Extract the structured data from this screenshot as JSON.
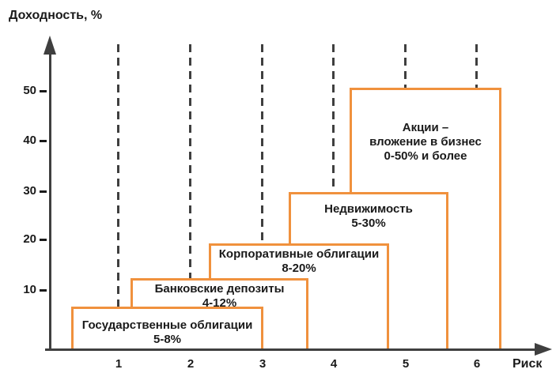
{
  "title": "Доходность, %",
  "axis": {
    "x_label": "Риск",
    "x_ticks": [
      "1",
      "2",
      "3",
      "4",
      "5",
      "6"
    ],
    "y_ticks": [
      "50",
      "40",
      "30",
      "20",
      "10"
    ]
  },
  "boxes": [
    {
      "lines": [
        "Государственные облигации",
        "5-8%"
      ]
    },
    {
      "lines": [
        "Банковские депозиты",
        "4-12%"
      ]
    },
    {
      "lines": [
        "Корпоративные облигации",
        "8-20%"
      ]
    },
    {
      "lines": [
        "Недвижимость",
        "5-30%"
      ]
    },
    {
      "lines": [
        "Акции –",
        "вложение в бизнес",
        "0-50% и более"
      ]
    }
  ],
  "colors": {
    "box_border": "#f0913d",
    "axis": "#3f3f3f",
    "text": "#1a1a1a",
    "background": "#ffffff"
  },
  "chart_data": {
    "type": "bar",
    "variant": "risk-return staircase of floating range boxes",
    "title": "Доходность, %",
    "xlabel": "Риск",
    "ylabel": "Доходность, %",
    "xlim": [
      0,
      6.5
    ],
    "ylim": [
      0,
      57
    ],
    "x_ticks": [
      1,
      2,
      3,
      4,
      5,
      6
    ],
    "y_ticks": [
      10,
      20,
      30,
      40,
      50
    ],
    "grid": "vertical dashed lines at each x tick, drawn behind boxes",
    "legend": "none",
    "series": [
      {
        "name": "Государственные облигации",
        "label": "5-8%",
        "yield_min_pct": 5,
        "yield_max_pct": 8,
        "risk_range": [
          0.35,
          3.0
        ]
      },
      {
        "name": "Банковские депозиты",
        "label": "4-12%",
        "yield_min_pct": 4,
        "yield_max_pct": 12,
        "risk_range": [
          1.15,
          3.6
        ]
      },
      {
        "name": "Корпоративные облигации",
        "label": "8-20%",
        "yield_min_pct": 8,
        "yield_max_pct": 20,
        "risk_range": [
          2.25,
          4.75
        ]
      },
      {
        "name": "Недвижимость",
        "label": "5-30%",
        "yield_min_pct": 5,
        "yield_max_pct": 30,
        "risk_range": [
          3.35,
          5.6
        ]
      },
      {
        "name": "Акции – вложение в бизнес",
        "label": "0-50% и более",
        "yield_min_pct": 0,
        "yield_max_pct": 50,
        "risk_range": [
          4.2,
          6.35
        ]
      }
    ]
  }
}
